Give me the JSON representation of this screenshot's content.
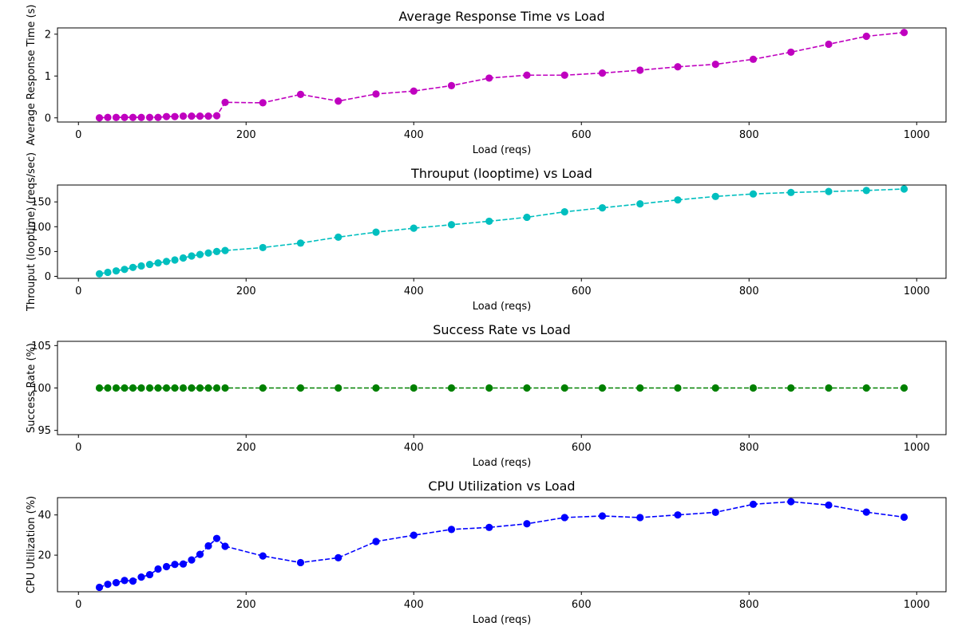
{
  "chart_data": [
    {
      "type": "line",
      "title": "Average Response Time vs Load",
      "xlabel": "Load (reqs)",
      "ylabel": "Average Response Time (s)",
      "xlim": [
        -25,
        1035
      ],
      "ylim": [
        -0.1,
        2.15
      ],
      "xticks": [
        0,
        200,
        400,
        600,
        800,
        1000
      ],
      "yticks": [
        0,
        1,
        2
      ],
      "color": "#bf00bf",
      "grid": false,
      "legend": "none",
      "series": [
        {
          "x": [
            25,
            35,
            45,
            55,
            65,
            75,
            85,
            95,
            105,
            115,
            125,
            135,
            145,
            155,
            165,
            175,
            220,
            265,
            310,
            355,
            400,
            445,
            490,
            535,
            580,
            625,
            670,
            715,
            760,
            805,
            850,
            895,
            940,
            985
          ],
          "y": [
            0.0,
            0.01,
            0.01,
            0.01,
            0.01,
            0.01,
            0.01,
            0.01,
            0.03,
            0.03,
            0.04,
            0.04,
            0.04,
            0.04,
            0.05,
            0.37,
            0.36,
            0.56,
            0.4,
            0.57,
            0.64,
            0.77,
            0.95,
            1.02,
            1.02,
            1.07,
            1.14,
            1.22,
            1.28,
            1.4,
            1.57,
            1.76,
            1.95,
            2.04
          ]
        }
      ]
    },
    {
      "type": "line",
      "title": "Throuput (looptime) vs Load",
      "xlabel": "Load (reqs)",
      "ylabel": "Throuput (looptime) (reqs/sec)",
      "xlim": [
        -25,
        1035
      ],
      "ylim": [
        -4,
        184
      ],
      "xticks": [
        0,
        200,
        400,
        600,
        800,
        1000
      ],
      "yticks": [
        0,
        50,
        100,
        150
      ],
      "color": "#00bfbf",
      "grid": false,
      "legend": "none",
      "series": [
        {
          "x": [
            25,
            35,
            45,
            55,
            65,
            75,
            85,
            95,
            105,
            115,
            125,
            135,
            145,
            155,
            165,
            175,
            220,
            265,
            310,
            355,
            400,
            445,
            490,
            535,
            580,
            625,
            670,
            715,
            760,
            805,
            850,
            895,
            940,
            985
          ],
          "y": [
            5,
            8,
            11,
            14,
            18,
            21,
            24,
            27,
            30,
            33,
            37,
            41,
            44,
            47,
            50,
            52,
            58,
            67,
            79,
            89,
            97,
            104,
            111,
            119,
            130,
            138,
            146,
            154,
            161,
            166,
            169,
            171,
            173,
            176
          ]
        }
      ]
    },
    {
      "type": "line",
      "title": "Success Rate vs Load",
      "xlabel": "Load (reqs)",
      "ylabel": "Success Rate (%)",
      "xlim": [
        -25,
        1035
      ],
      "ylim": [
        94.5,
        105.5
      ],
      "xticks": [
        0,
        200,
        400,
        600,
        800,
        1000
      ],
      "yticks": [
        95,
        100,
        105
      ],
      "color": "#008000",
      "grid": false,
      "legend": "none",
      "series": [
        {
          "x": [
            25,
            35,
            45,
            55,
            65,
            75,
            85,
            95,
            105,
            115,
            125,
            135,
            145,
            155,
            165,
            175,
            220,
            265,
            310,
            355,
            400,
            445,
            490,
            535,
            580,
            625,
            670,
            715,
            760,
            805,
            850,
            895,
            940,
            985
          ],
          "y": [
            100,
            100,
            100,
            100,
            100,
            100,
            100,
            100,
            100,
            100,
            100,
            100,
            100,
            100,
            100,
            100,
            100,
            100,
            100,
            100,
            100,
            100,
            100,
            100,
            100,
            100,
            100,
            100,
            100,
            100,
            100,
            100,
            100,
            100
          ]
        }
      ]
    },
    {
      "type": "line",
      "title": "CPU Utilization vs Load",
      "xlabel": "Load (reqs)",
      "ylabel": "CPU Utilization (%)",
      "xlim": [
        -25,
        1035
      ],
      "ylim": [
        1.8,
        48.6
      ],
      "xticks": [
        0,
        200,
        400,
        600,
        800,
        1000
      ],
      "yticks": [
        20,
        40
      ],
      "color": "#0000ff",
      "grid": false,
      "legend": "none",
      "series": [
        {
          "x": [
            25,
            35,
            45,
            55,
            65,
            75,
            85,
            95,
            105,
            115,
            125,
            135,
            145,
            155,
            165,
            175,
            220,
            265,
            310,
            355,
            400,
            445,
            490,
            535,
            580,
            625,
            670,
            715,
            760,
            805,
            850,
            895,
            940,
            985
          ],
          "y": [
            4.0,
            5.5,
            6.3,
            7.4,
            7.1,
            9.1,
            10.3,
            13.1,
            14.3,
            15.4,
            15.6,
            17.6,
            20.4,
            24.6,
            28.3,
            24.4,
            19.6,
            16.3,
            18.7,
            26.8,
            29.9,
            32.8,
            33.8,
            35.6,
            38.7,
            39.5,
            38.7,
            40.0,
            41.3,
            45.3,
            46.6,
            44.9,
            41.4,
            38.9
          ]
        }
      ]
    }
  ]
}
